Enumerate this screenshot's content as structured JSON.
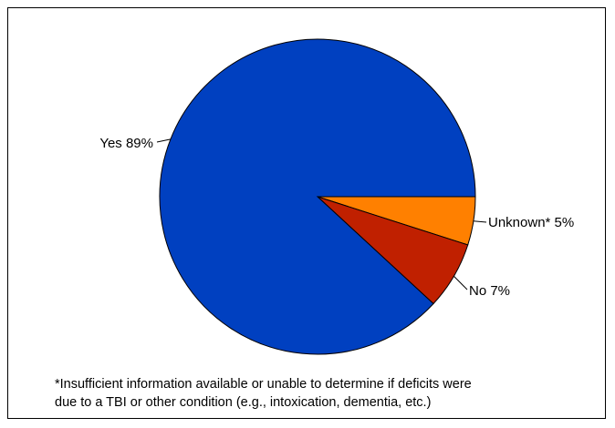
{
  "chart_data": {
    "type": "pie",
    "title": "",
    "slices": [
      {
        "label": "Unknown*",
        "value": 5,
        "value_label": "5%",
        "color": "#FF8000"
      },
      {
        "label": "No",
        "value": 7,
        "value_label": "7%",
        "color": "#C02000"
      },
      {
        "label": "Yes",
        "value": 89,
        "value_label": "89%",
        "color": "#0040C0"
      }
    ],
    "legend": "none"
  },
  "footnote": {
    "line1": "*Insufficient information available or unable to determine if deficits were",
    "line2": "due to a TBI or other condition (e.g., intoxication, dementia, etc.)"
  }
}
